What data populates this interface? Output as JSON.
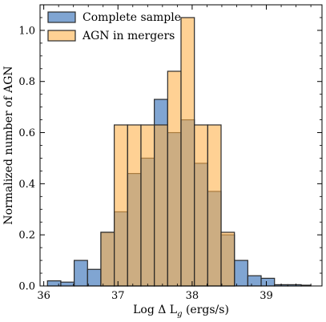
{
  "chart_data": {
    "type": "histogram",
    "xlabel": "Log Δ L",
    "xlabel_sub": "g",
    "xlabel_unit": " (ergs/s)",
    "ylabel": "Normalized number of AGN",
    "xlim": [
      35.95,
      39.75
    ],
    "ylim": [
      0,
      1.1
    ],
    "x_ticks": [
      36,
      37,
      38,
      39
    ],
    "y_ticks": [
      0.0,
      0.2,
      0.4,
      0.6,
      0.8,
      1.0
    ],
    "y_tick_labels": [
      "0.0",
      "0.2",
      "0.4",
      "0.6",
      "0.8",
      "1.0"
    ],
    "x_tick_labels": [
      "36",
      "37",
      "38",
      "39"
    ],
    "legend_placement": "top-left",
    "colors": {
      "complete": "#4a7fbf",
      "agn": "#ffb34d",
      "edge": "#2b2b2b"
    },
    "series": [
      {
        "name": "Complete sample",
        "bin_edges": [
          36.05,
          36.23,
          36.41,
          36.59,
          36.77,
          36.95,
          37.13,
          37.31,
          37.49,
          37.67,
          37.85,
          38.03,
          38.21,
          38.39,
          38.57,
          38.75,
          38.93,
          39.11,
          39.29,
          39.47,
          39.6
        ],
        "values": [
          0.02,
          0.015,
          0.1,
          0.065,
          0.21,
          0.29,
          0.44,
          0.5,
          0.73,
          0.6,
          0.65,
          0.48,
          0.37,
          0.2,
          0.1,
          0.04,
          0.03,
          0.005,
          0.005,
          0.003
        ]
      },
      {
        "name": "AGN in mergers",
        "bin_edges": [
          36.77,
          36.95,
          37.13,
          37.31,
          37.49,
          37.67,
          37.85,
          38.03,
          38.21,
          38.39,
          38.57
        ],
        "values": [
          0.21,
          0.63,
          0.63,
          0.63,
          0.63,
          0.84,
          1.05,
          0.63,
          0.63,
          0.21
        ]
      }
    ]
  }
}
